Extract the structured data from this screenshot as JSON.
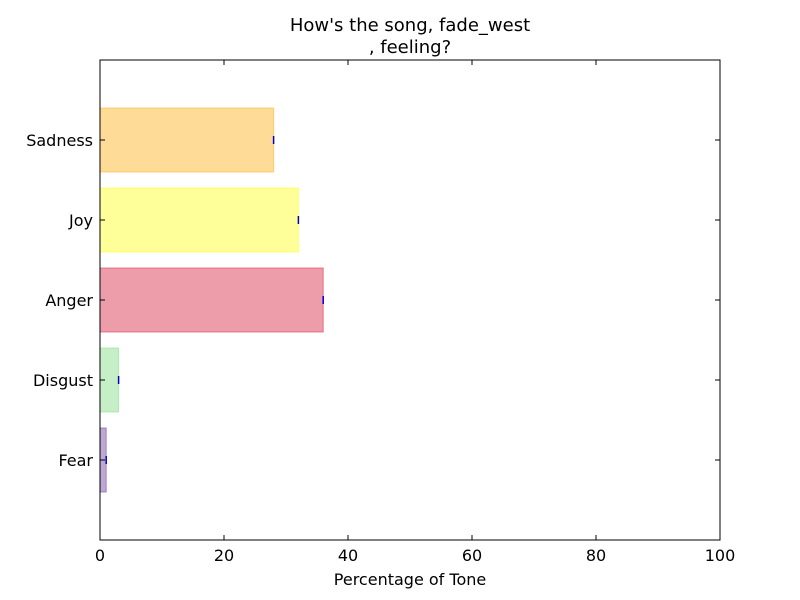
{
  "chart_data": {
    "type": "bar",
    "orientation": "horizontal",
    "title_lines": [
      "How's the song, fade_west",
      ", feeling?"
    ],
    "xlabel": "Percentage of Tone",
    "ylabel": "",
    "xlim": [
      0,
      100
    ],
    "xticks": [
      0,
      20,
      40,
      60,
      80,
      100
    ],
    "xtick_labels": [
      "0",
      "20",
      "40",
      "60",
      "80",
      "100"
    ],
    "categories": [
      "Fear",
      "Disgust",
      "Anger",
      "Joy",
      "Sadness"
    ],
    "values": [
      1,
      3,
      36,
      32,
      28
    ],
    "colors": [
      "#7b4fa8",
      "#90e090",
      "#dc3c55",
      "#ffff33",
      "#ffb732"
    ],
    "marker_color": "#0000cc",
    "grid": false,
    "legend": "none"
  }
}
